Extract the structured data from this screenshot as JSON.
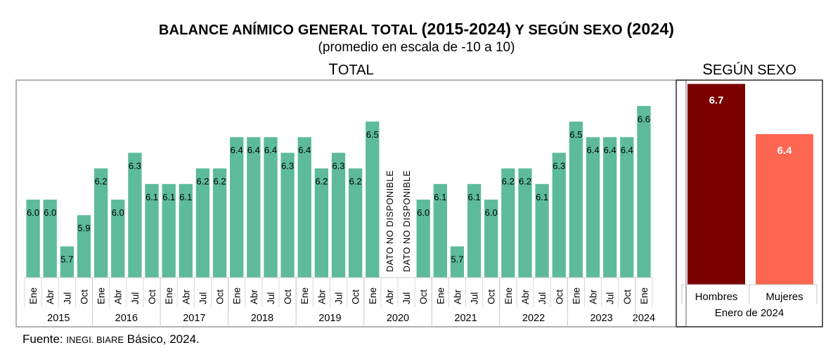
{
  "title": {
    "part1": "BALANCE ANÍMICO GENERAL TOTAL ",
    "part2": "(2015-2024)",
    "part3": " Y SEGÚN SEXO ",
    "part4": "(2024)"
  },
  "subtitle": "(promedio en escala de -10 a 10)",
  "total_panel": {
    "title_cap": "T",
    "title_rest": "OTAL"
  },
  "sexo_panel": {
    "title_cap": "S",
    "title_rest": "EGÚN SEXO"
  },
  "source": {
    "prefix": "Fuente: ",
    "org": "INEGI. BIARE",
    "suffix": " Básico, 2024."
  },
  "chart_data": [
    {
      "type": "bar",
      "categories": [
        "Ene",
        "Abr",
        "Jul",
        "Oct",
        "Ene",
        "Abr",
        "Jul",
        "Oct",
        "Ene",
        "Abr",
        "Jul",
        "Oct",
        "Ene",
        "Abr",
        "Jul",
        "Oct",
        "Ene",
        "Abr",
        "Jul",
        "Oct",
        "Ene",
        "Abr",
        "Jul",
        "Oct",
        "Ene",
        "Abr",
        "Jul",
        "Oct",
        "Ene",
        "Abr",
        "Jul",
        "Oct",
        "Ene",
        "Abr",
        "Jul",
        "Oct",
        "Ene"
      ],
      "years": [
        {
          "label": "2015",
          "count": 4
        },
        {
          "label": "2016",
          "count": 4
        },
        {
          "label": "2017",
          "count": 4
        },
        {
          "label": "2018",
          "count": 4
        },
        {
          "label": "2019",
          "count": 4
        },
        {
          "label": "2020",
          "count": 4
        },
        {
          "label": "2021",
          "count": 4
        },
        {
          "label": "2022",
          "count": 4
        },
        {
          "label": "2023",
          "count": 4
        },
        {
          "label": "2024",
          "count": 1
        }
      ],
      "values": [
        6.0,
        6.0,
        5.7,
        5.9,
        6.2,
        6.0,
        6.3,
        6.1,
        6.1,
        6.1,
        6.2,
        6.2,
        6.4,
        6.4,
        6.4,
        6.3,
        6.4,
        6.2,
        6.3,
        6.2,
        6.5,
        null,
        null,
        6.0,
        6.1,
        5.7,
        6.1,
        6.0,
        6.2,
        6.2,
        6.1,
        6.3,
        6.5,
        6.4,
        6.4,
        6.4,
        6.6
      ],
      "missing_label": "DATO NO DISPONIBLE",
      "color": "#5dbb9c"
    },
    {
      "type": "bar",
      "categories": [
        "Hombres",
        "Mujeres"
      ],
      "values": [
        6.7,
        6.4
      ],
      "colors": [
        "#7b0000",
        "#ff6651"
      ],
      "xlabel": "Enero de 2024"
    }
  ]
}
